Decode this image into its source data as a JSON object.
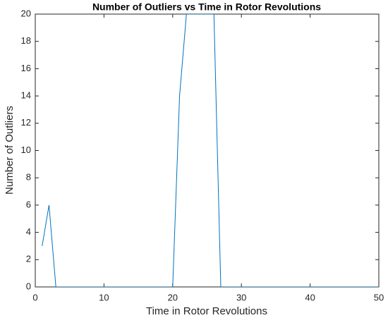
{
  "chart_data": {
    "type": "line",
    "title": "Number of Outliers vs Time in Rotor Revolutions",
    "x_label": "Time in Rotor Revolutions",
    "y_label": "Number of Outliers",
    "x": [
      1,
      2,
      3,
      4,
      5,
      6,
      7,
      8,
      9,
      10,
      11,
      12,
      13,
      14,
      15,
      16,
      17,
      18,
      19,
      20,
      21,
      22,
      23,
      24,
      25,
      26,
      27,
      28,
      29,
      30,
      31,
      32,
      33,
      34,
      35,
      36,
      37,
      38,
      39,
      40,
      41,
      42,
      43,
      44,
      45,
      46,
      47,
      48,
      49,
      50
    ],
    "values": [
      3,
      6,
      0,
      0,
      0,
      0,
      0,
      0,
      0,
      0,
      0,
      0,
      0,
      0,
      0,
      0,
      0,
      0,
      0,
      0,
      14,
      20,
      20,
      20,
      20,
      20,
      0,
      0,
      0,
      0,
      0,
      0,
      0,
      0,
      0,
      0,
      0,
      0,
      0,
      0,
      0,
      0,
      0,
      0,
      0,
      0,
      0,
      0,
      0,
      0
    ],
    "color": "#0072bd",
    "xlim": [
      0,
      50
    ],
    "xticks": [
      0,
      10,
      20,
      30,
      40,
      50
    ],
    "ylim": [
      0,
      20
    ],
    "yticks": [
      0,
      2,
      4,
      6,
      8,
      10,
      12,
      14,
      16,
      18,
      20
    ],
    "grid": false
  }
}
